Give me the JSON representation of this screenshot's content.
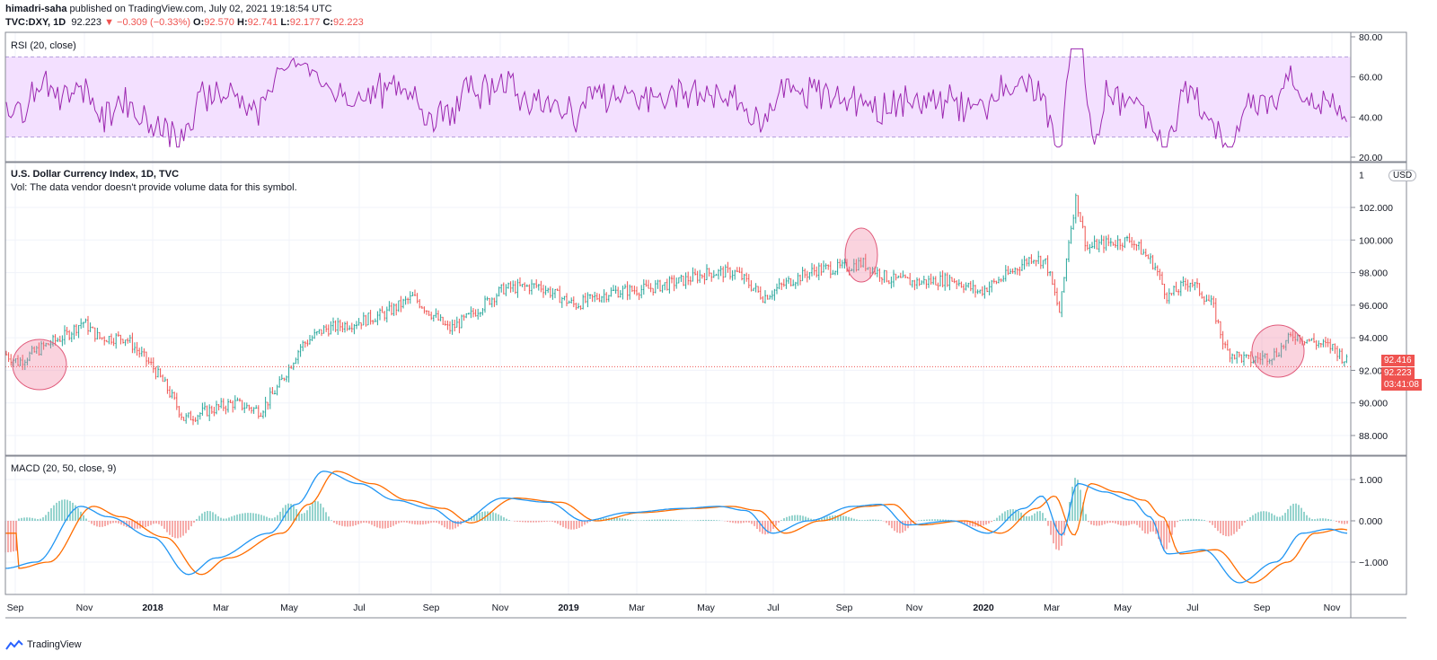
{
  "header": {
    "author": "himadri-saha",
    "published": " published on TradingView.com, July 02, 2021 19:18:54 UTC",
    "symbol": "TVC:DXY, 1D",
    "last": "92.223",
    "change": "▼ −0.309 (−0.33%)",
    "o_label": "O:",
    "o": "92.570",
    "h_label": "H:",
    "h": "92.741",
    "l_label": "L:",
    "l": "92.177",
    "c_label": "C:",
    "c": "92.223"
  },
  "rsi": {
    "title": "RSI (20, close)",
    "ticks": [
      "80.00",
      "60.00",
      "40.00",
      "20.00"
    ],
    "upper_band": 70,
    "lower_band": 30,
    "line_color": "#9c27b0",
    "band_fill": "#f3e0ff"
  },
  "main": {
    "title": "U.S. Dollar Currency Index, 1D, TVC",
    "vol_note": "Vol: The data vendor doesn't provide volume data for this symbol.",
    "currency": "USD",
    "ticks": [
      "102.000",
      "100.000",
      "98.000",
      "96.000",
      "94.000",
      "92.000",
      "90.000",
      "88.000"
    ],
    "top_tick_partial": "1",
    "price_tag_1": "92.416",
    "price_tag_2": "92.223",
    "countdown": "03:41:08",
    "up_color": "#26a69a",
    "down_color": "#ef5350",
    "highlight_fill": "rgba(240,128,160,0.35)"
  },
  "macd": {
    "title": "MACD (20, 50, close, 9)",
    "ticks": [
      "1.000",
      "0.000",
      "−1.000"
    ],
    "macd_color": "#2196f3",
    "signal_color": "#ff6d00"
  },
  "time_axis": {
    "labels": [
      "Sep",
      "Nov",
      "2018",
      "Mar",
      "May",
      "Jul",
      "Sep",
      "Nov",
      "2019",
      "Mar",
      "May",
      "Jul",
      "Sep",
      "Nov",
      "2020",
      "Mar",
      "May",
      "Jul",
      "Sep",
      "Nov"
    ],
    "bold": [
      "2018",
      "2019",
      "2020"
    ]
  },
  "footer": {
    "brand": "TradingView"
  }
}
